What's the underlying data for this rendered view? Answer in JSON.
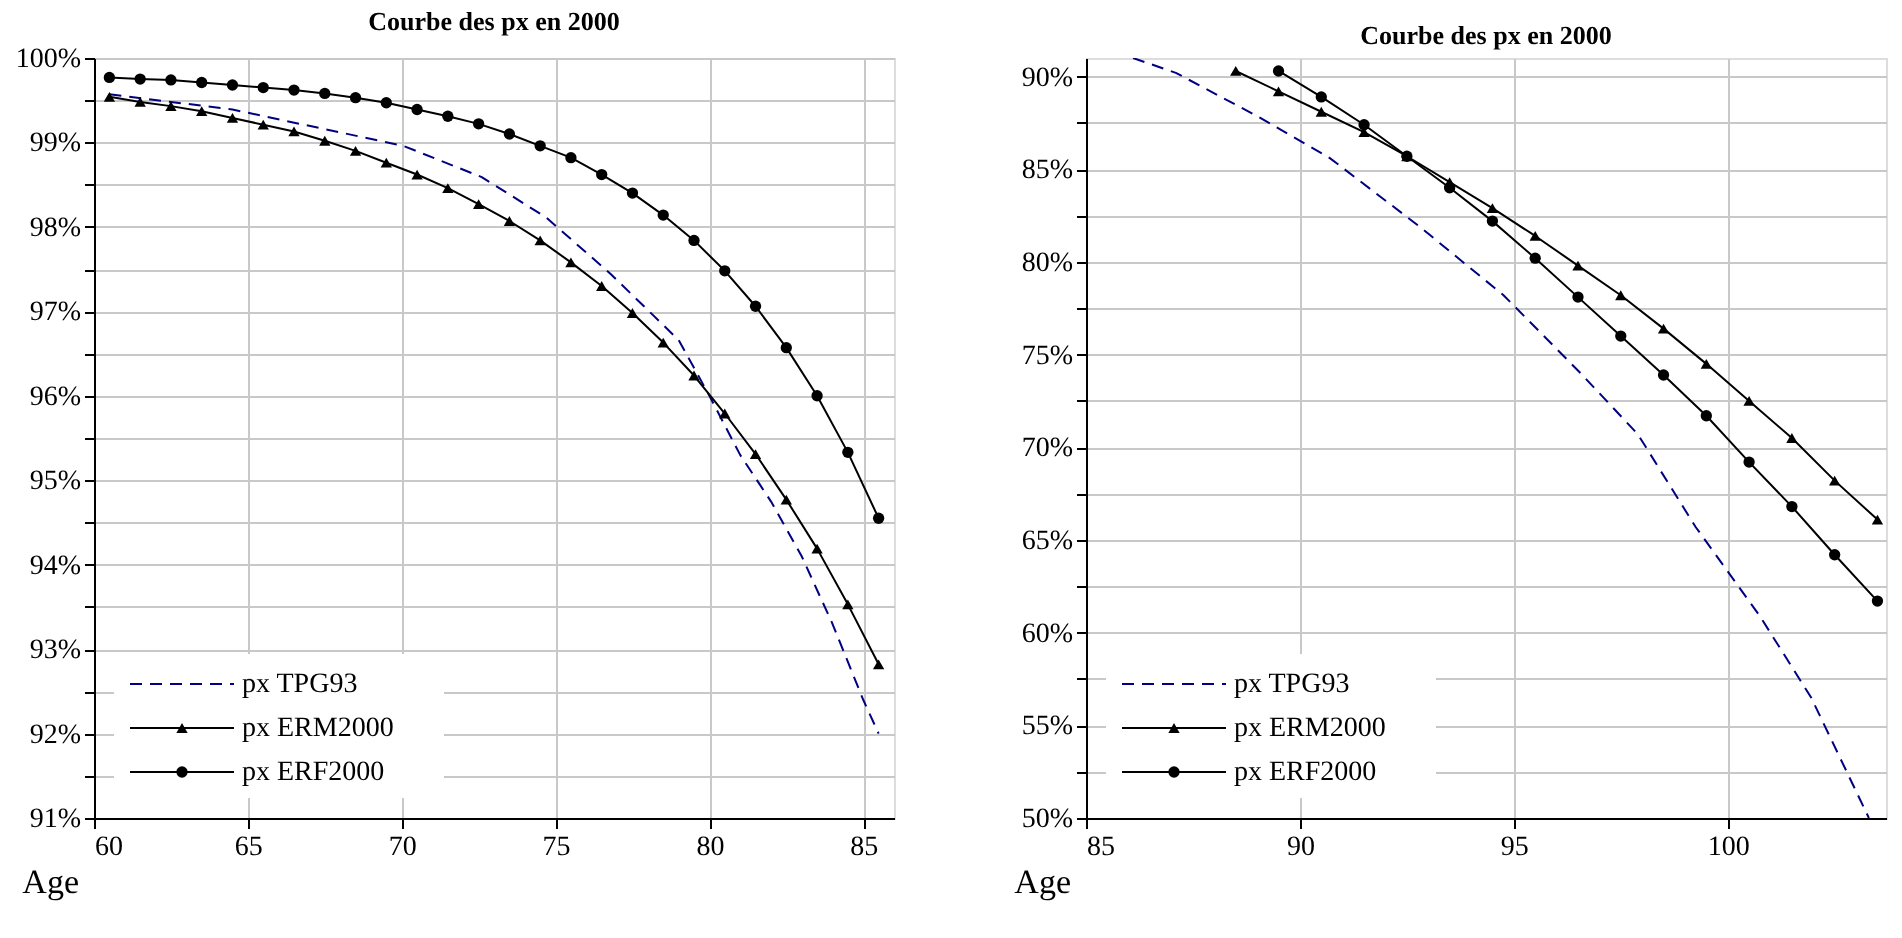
{
  "chart_data": [
    {
      "type": "line",
      "title": "Courbe des px en 2000",
      "xlabel": "Age",
      "xlim": [
        60,
        86
      ],
      "xticks": [
        60,
        65,
        70,
        75,
        80,
        85
      ],
      "ylim": [
        91,
        100
      ],
      "yticks": [
        {
          "value": 91,
          "label": "91%"
        },
        {
          "value": 91.5,
          "label": null
        },
        {
          "value": 92,
          "label": "92%"
        },
        {
          "value": 92.5,
          "label": null
        },
        {
          "value": 93,
          "label": "93%"
        },
        {
          "value": 93.5,
          "label": null
        },
        {
          "value": 94,
          "label": "94%"
        },
        {
          "value": 94.5,
          "label": null
        },
        {
          "value": 95,
          "label": "95%"
        },
        {
          "value": 95.5,
          "label": null
        },
        {
          "value": 96,
          "label": "96%"
        },
        {
          "value": 96.5,
          "label": null
        },
        {
          "value": 97,
          "label": "97%"
        },
        {
          "value": 97.5,
          "label": null
        },
        {
          "value": 98,
          "label": "98%"
        },
        {
          "value": 98.5,
          "label": null
        },
        {
          "value": 99,
          "label": "99%"
        },
        {
          "value": 99.5,
          "label": null
        },
        {
          "value": 100,
          "label": "100%"
        }
      ],
      "grid": true,
      "legend": "bottom left",
      "series": [
        {
          "name": "px TPG93",
          "color": "#000080",
          "line_style": "dashed",
          "marker": "none",
          "x": [
            60.5,
            64.5,
            70.05,
            72.6,
            74.7,
            76.8,
            79,
            80,
            81,
            82,
            83,
            84,
            85,
            85.5
          ],
          "values": [
            99.57,
            99.39,
            98.96,
            98.59,
            98.11,
            97.44,
            96.66,
            96.0,
            95.3,
            94.75,
            94.1,
            93.3,
            92.4,
            92.0
          ]
        },
        {
          "name": "px ERM2000",
          "color": "#000000",
          "line_style": "solid",
          "marker": "triangle",
          "x": [
            60.5,
            61.5,
            62.5,
            63.5,
            64.5,
            65.5,
            66.5,
            67.5,
            68.5,
            69.5,
            70.5,
            71.5,
            72.5,
            73.5,
            74.5,
            75.5,
            76.5,
            77.5,
            78.5,
            79.5,
            80.5,
            81.5,
            82.5,
            83.5,
            84.5,
            85.5
          ],
          "values": [
            99.54,
            99.48,
            99.43,
            99.37,
            99.29,
            99.21,
            99.13,
            99.02,
            98.9,
            98.76,
            98.62,
            98.46,
            98.27,
            98.07,
            97.84,
            97.58,
            97.3,
            96.98,
            96.63,
            96.24,
            95.79,
            95.31,
            94.77,
            94.19,
            93.53,
            92.82
          ]
        },
        {
          "name": "px ERF2000",
          "color": "#000000",
          "line_style": "solid",
          "marker": "circle",
          "x": [
            60.5,
            61.5,
            62.5,
            63.5,
            64.5,
            65.5,
            66.5,
            67.5,
            68.5,
            69.5,
            70.5,
            71.5,
            72.5,
            73.5,
            74.5,
            75.5,
            76.5,
            77.5,
            78.5,
            79.5,
            80.5,
            81.5,
            82.5,
            83.5,
            84.5,
            85.5
          ],
          "values": [
            99.77,
            99.75,
            99.74,
            99.71,
            99.68,
            99.65,
            99.62,
            99.58,
            99.53,
            99.47,
            99.39,
            99.31,
            99.22,
            99.1,
            98.96,
            98.82,
            98.62,
            98.4,
            98.14,
            97.84,
            97.48,
            97.06,
            96.57,
            96.0,
            95.33,
            94.55
          ]
        }
      ]
    },
    {
      "type": "line",
      "title": "Courbe des px en 2000",
      "xlabel": "Age",
      "xlim": [
        85,
        103.7
      ],
      "xticks": [
        85,
        90,
        95,
        100
      ],
      "ylim": [
        50,
        91
      ],
      "yticks": [
        {
          "value": 50,
          "label": "50%"
        },
        {
          "value": 52.5,
          "label": null
        },
        {
          "value": 55,
          "label": "55%"
        },
        {
          "value": 57.5,
          "label": null
        },
        {
          "value": 60,
          "label": "60%"
        },
        {
          "value": 62.5,
          "label": null
        },
        {
          "value": 65,
          "label": "65%"
        },
        {
          "value": 67.5,
          "label": null
        },
        {
          "value": 70,
          "label": "70%"
        },
        {
          "value": 72.5,
          "label": null
        },
        {
          "value": 75,
          "label": "75%"
        },
        {
          "value": 77.5,
          "label": null
        },
        {
          "value": 80,
          "label": "80%"
        },
        {
          "value": 82.5,
          "label": null
        },
        {
          "value": 85,
          "label": "85%"
        },
        {
          "value": 87.5,
          "label": null
        },
        {
          "value": 90,
          "label": "90%"
        }
      ],
      "grid": true,
      "legend": "bottom left",
      "series": [
        {
          "name": "px TPG93",
          "color": "#000080",
          "line_style": "dashed",
          "marker": "none",
          "x": [
            86.1,
            87.1,
            89.05,
            90.7,
            92.8,
            94.76,
            96.56,
            97.9,
            99.25,
            100.75,
            101.95,
            103.3
          ],
          "values": [
            91.0,
            90.2,
            87.8,
            85.6,
            81.9,
            78.2,
            74.0,
            70.7,
            65.7,
            60.9,
            56.5,
            50.0
          ]
        },
        {
          "name": "px ERM2000",
          "color": "#000000",
          "line_style": "solid",
          "marker": "triangle",
          "x": [
            88.5,
            89.5,
            90.5,
            91.5,
            92.5,
            93.5,
            94.5,
            95.5,
            96.5,
            97.5,
            98.5,
            99.5,
            100.5,
            101.5,
            102.5,
            103.5
          ],
          "values": [
            90.3,
            89.2,
            88.1,
            87.0,
            85.7,
            84.3,
            82.9,
            81.4,
            79.8,
            78.2,
            76.4,
            74.5,
            72.5,
            70.5,
            68.2,
            66.1
          ]
        },
        {
          "name": "px ERF2000",
          "color": "#000000",
          "line_style": "solid",
          "marker": "circle",
          "x": [
            89.5,
            90.5,
            91.5,
            92.5,
            93.5,
            94.5,
            95.5,
            96.5,
            97.5,
            98.5,
            99.5,
            100.5,
            101.5,
            102.5,
            103.5
          ],
          "values": [
            90.3,
            88.9,
            87.4,
            85.7,
            84.0,
            82.2,
            80.2,
            78.1,
            76.0,
            73.9,
            71.7,
            69.2,
            66.8,
            64.2,
            61.7
          ]
        }
      ]
    }
  ]
}
